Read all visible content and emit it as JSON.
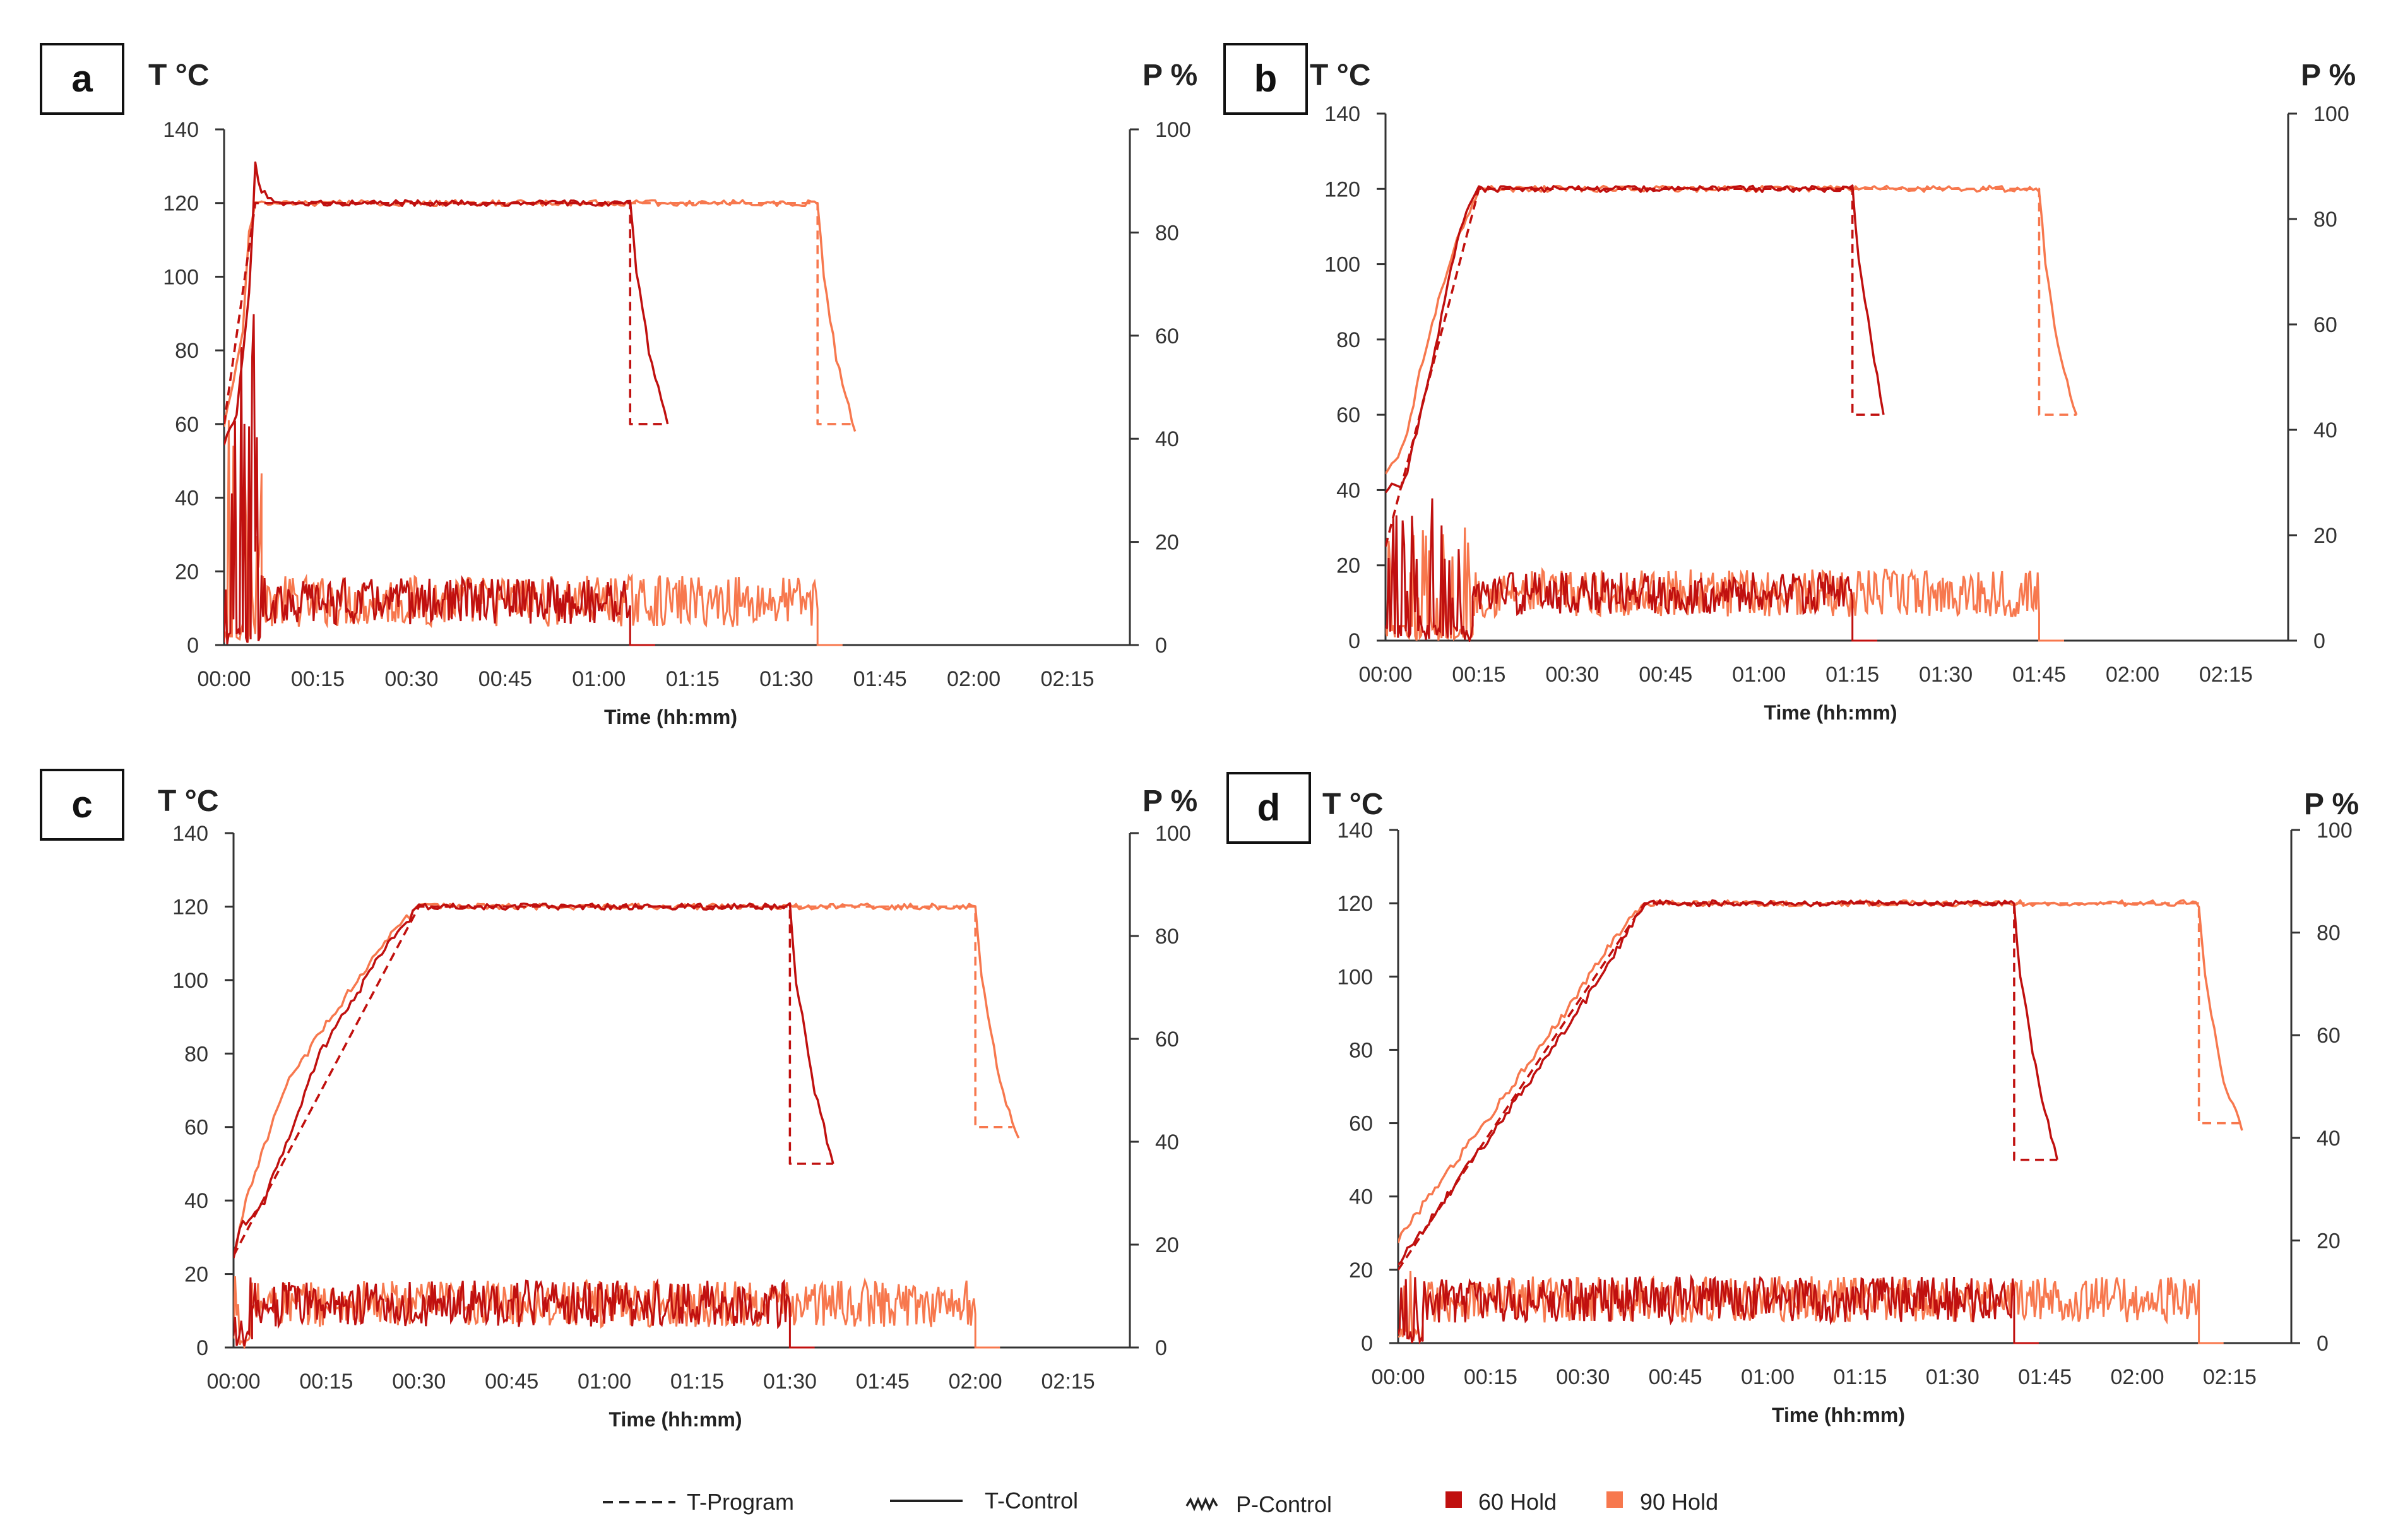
{
  "colors": {
    "hold60": "#c0100f",
    "hold90": "#f7784e",
    "axis": "#333333"
  },
  "legend": [
    {
      "label": "T-Program",
      "style": "dashed"
    },
    {
      "label": "T-Control",
      "style": "solid"
    },
    {
      "label": "P-Control",
      "style": "zigzag"
    },
    {
      "label": "60 Hold",
      "style": "square-dark"
    },
    {
      "label": "90 Hold",
      "style": "square-light"
    }
  ],
  "chart_data": [
    {
      "type": "line",
      "panel": "a",
      "ylabel": "T °C",
      "y2label": "P %",
      "xlabel": "Time (hh:mm)",
      "xlim": [
        0,
        145
      ],
      "ylim": [
        0,
        140
      ],
      "y2lim": [
        0,
        100
      ],
      "xticks": [
        "00:00",
        "00:15",
        "00:30",
        "00:45",
        "01:00",
        "01:15",
        "01:30",
        "01:45",
        "02:00",
        "02:15"
      ],
      "yticks": [
        0,
        20,
        40,
        60,
        80,
        100,
        120,
        140
      ],
      "y2ticks": [
        0,
        20,
        40,
        60,
        80,
        100
      ],
      "series": [
        {
          "name": "60 Hold T-Program",
          "values": [
            [
              0,
              60
            ],
            [
              5,
              120
            ],
            [
              65,
              120
            ],
            [
              65,
              60
            ],
            [
              71,
              60
            ]
          ]
        },
        {
          "name": "60 Hold T-Control",
          "values": [
            [
              0,
              55
            ],
            [
              2,
              62
            ],
            [
              4,
              95
            ],
            [
              5,
              130
            ],
            [
              6,
              123
            ],
            [
              8,
              120
            ],
            [
              65,
              120
            ],
            [
              66,
              102
            ],
            [
              68,
              80
            ],
            [
              71,
              60
            ]
          ]
        },
        {
          "name": "90 Hold T-Program",
          "values": [
            [
              0,
              60
            ],
            [
              5,
              120
            ],
            [
              95,
              120
            ],
            [
              95,
              60
            ],
            [
              101,
              60
            ]
          ]
        },
        {
          "name": "90 Hold T-Control",
          "values": [
            [
              0,
              60
            ],
            [
              3,
              85
            ],
            [
              4,
              112
            ],
            [
              5,
              120
            ],
            [
              95,
              120
            ],
            [
              96,
              100
            ],
            [
              98,
              78
            ],
            [
              101,
              58
            ]
          ]
        },
        {
          "name": "60 Hold P-Control",
          "mean": 8.5,
          "spread": 4.5,
          "start": 6,
          "end": 65,
          "initial_peak": 65
        },
        {
          "name": "90 Hold P-Control",
          "mean": 8.5,
          "spread": 5,
          "start": 6,
          "end": 95,
          "initial_peak": 55
        }
      ]
    },
    {
      "type": "line",
      "panel": "b",
      "ylabel": "T °C",
      "y2label": "P %",
      "xlabel": "Time (hh:mm)",
      "xlim": [
        0,
        145
      ],
      "ylim": [
        0,
        140
      ],
      "y2lim": [
        0,
        100
      ],
      "xticks": [
        "00:00",
        "00:15",
        "00:30",
        "00:45",
        "01:00",
        "01:15",
        "01:30",
        "01:45",
        "02:00",
        "02:15"
      ],
      "yticks": [
        0,
        20,
        40,
        60,
        80,
        100,
        120,
        140
      ],
      "y2ticks": [
        0,
        20,
        40,
        60,
        80,
        100
      ],
      "series": [
        {
          "name": "60 Hold T-Program",
          "values": [
            [
              0,
              25
            ],
            [
              15,
              120
            ],
            [
              75,
              120
            ],
            [
              75,
              60
            ],
            [
              80,
              60
            ]
          ]
        },
        {
          "name": "60 Hold T-Control",
          "values": [
            [
              0,
              40
            ],
            [
              3,
              42
            ],
            [
              7,
              70
            ],
            [
              12,
              110
            ],
            [
              15,
              120
            ],
            [
              75,
              120
            ],
            [
              76,
              102
            ],
            [
              78,
              80
            ],
            [
              80,
              60
            ]
          ]
        },
        {
          "name": "90 Hold T-Program",
          "values": [
            [
              0,
              25
            ],
            [
              15,
              120
            ],
            [
              105,
              120
            ],
            [
              105,
              60
            ],
            [
              111,
              60
            ]
          ]
        },
        {
          "name": "90 Hold T-Control",
          "values": [
            [
              0,
              45
            ],
            [
              3,
              52
            ],
            [
              6,
              75
            ],
            [
              11,
              105
            ],
            [
              15,
              120
            ],
            [
              105,
              120
            ],
            [
              106,
              100
            ],
            [
              108,
              78
            ],
            [
              111,
              60
            ]
          ]
        },
        {
          "name": "60 Hold P-Control",
          "mean": 9,
          "spread": 4,
          "start": 14,
          "end": 75,
          "initial_peak": 27
        },
        {
          "name": "90 Hold P-Control",
          "mean": 9,
          "spread": 4.5,
          "start": 14,
          "end": 105,
          "initial_peak": 22
        }
      ]
    },
    {
      "type": "line",
      "panel": "c",
      "ylabel": "T °C",
      "y2label": "P %",
      "xlabel": "Time (hh:mm)",
      "xlim": [
        0,
        145
      ],
      "ylim": [
        0,
        140
      ],
      "y2lim": [
        0,
        100
      ],
      "xticks": [
        "00:00",
        "00:15",
        "00:30",
        "00:45",
        "01:00",
        "01:15",
        "01:30",
        "01:45",
        "02:00",
        "02:15"
      ],
      "yticks": [
        0,
        20,
        40,
        60,
        80,
        100,
        120,
        140
      ],
      "y2ticks": [
        0,
        20,
        40,
        60,
        80,
        100
      ],
      "series": [
        {
          "name": "60 Hold T-Program",
          "values": [
            [
              0,
              25
            ],
            [
              30,
              120
            ],
            [
              90,
              120
            ],
            [
              90,
              50
            ],
            [
              97,
              50
            ]
          ]
        },
        {
          "name": "60 Hold T-Control",
          "values": [
            [
              0,
              25
            ],
            [
              1,
              33
            ],
            [
              3,
              36
            ],
            [
              5,
              40
            ],
            [
              14,
              80
            ],
            [
              25,
              110
            ],
            [
              30,
              120
            ],
            [
              90,
              120
            ],
            [
              91,
              100
            ],
            [
              94,
              70
            ],
            [
              97,
              50
            ]
          ]
        },
        {
          "name": "90 Hold T-Program",
          "values": [
            [
              0,
              25
            ],
            [
              30,
              120
            ],
            [
              120,
              120
            ],
            [
              120,
              60
            ],
            [
              126,
              60
            ]
          ]
        },
        {
          "name": "90 Hold T-Control",
          "values": [
            [
              0,
              25
            ],
            [
              2,
              40
            ],
            [
              8,
              70
            ],
            [
              15,
              88
            ],
            [
              25,
              112
            ],
            [
              30,
              120
            ],
            [
              120,
              120
            ],
            [
              121,
              100
            ],
            [
              124,
              72
            ],
            [
              127,
              57
            ]
          ]
        },
        {
          "name": "60 Hold P-Control",
          "mean": 8.5,
          "spread": 4.5,
          "start": 3,
          "end": 90,
          "initial_peak": 17
        },
        {
          "name": "90 Hold P-Control",
          "mean": 8.5,
          "spread": 4.5,
          "start": 3,
          "end": 120,
          "initial_peak": 16
        }
      ]
    },
    {
      "type": "line",
      "panel": "d",
      "ylabel": "T °C",
      "y2label": "P %",
      "xlabel": "Time (hh:mm)",
      "xlim": [
        0,
        145
      ],
      "ylim": [
        0,
        140
      ],
      "y2lim": [
        0,
        100
      ],
      "xticks": [
        "00:00",
        "00:15",
        "00:30",
        "00:45",
        "01:00",
        "01:15",
        "01:30",
        "01:45",
        "02:00",
        "02:15"
      ],
      "yticks": [
        0,
        20,
        40,
        60,
        80,
        100,
        120,
        140
      ],
      "y2ticks": [
        0,
        20,
        40,
        60,
        80,
        100
      ],
      "series": [
        {
          "name": "60 Hold T-Program",
          "values": [
            [
              0,
              20
            ],
            [
              40,
              120
            ],
            [
              100,
              120
            ],
            [
              100,
              50
            ],
            [
              107,
              50
            ]
          ]
        },
        {
          "name": "60 Hold T-Control",
          "values": [
            [
              0,
              22
            ],
            [
              2,
              26
            ],
            [
              10,
              45
            ],
            [
              22,
              73
            ],
            [
              33,
              100
            ],
            [
              40,
              120
            ],
            [
              100,
              120
            ],
            [
              101,
              100
            ],
            [
              104,
              70
            ],
            [
              107,
              50
            ]
          ]
        },
        {
          "name": "90 Hold T-Program",
          "values": [
            [
              0,
              20
            ],
            [
              40,
              120
            ],
            [
              130,
              120
            ],
            [
              130,
              60
            ],
            [
              137,
              60
            ]
          ]
        },
        {
          "name": "90 Hold T-Control",
          "values": [
            [
              0,
              28
            ],
            [
              5,
              40
            ],
            [
              15,
              62
            ],
            [
              27,
              90
            ],
            [
              35,
              110
            ],
            [
              40,
              120
            ],
            [
              130,
              120
            ],
            [
              131,
              100
            ],
            [
              134,
              72
            ],
            [
              137,
              58
            ]
          ]
        },
        {
          "name": "60 Hold P-Control",
          "mean": 8.5,
          "spread": 4.5,
          "start": 4,
          "end": 100,
          "initial_peak": 17
        },
        {
          "name": "90 Hold P-Control",
          "mean": 8.5,
          "spread": 4.5,
          "start": 4,
          "end": 130,
          "initial_peak": 15
        }
      ]
    }
  ]
}
